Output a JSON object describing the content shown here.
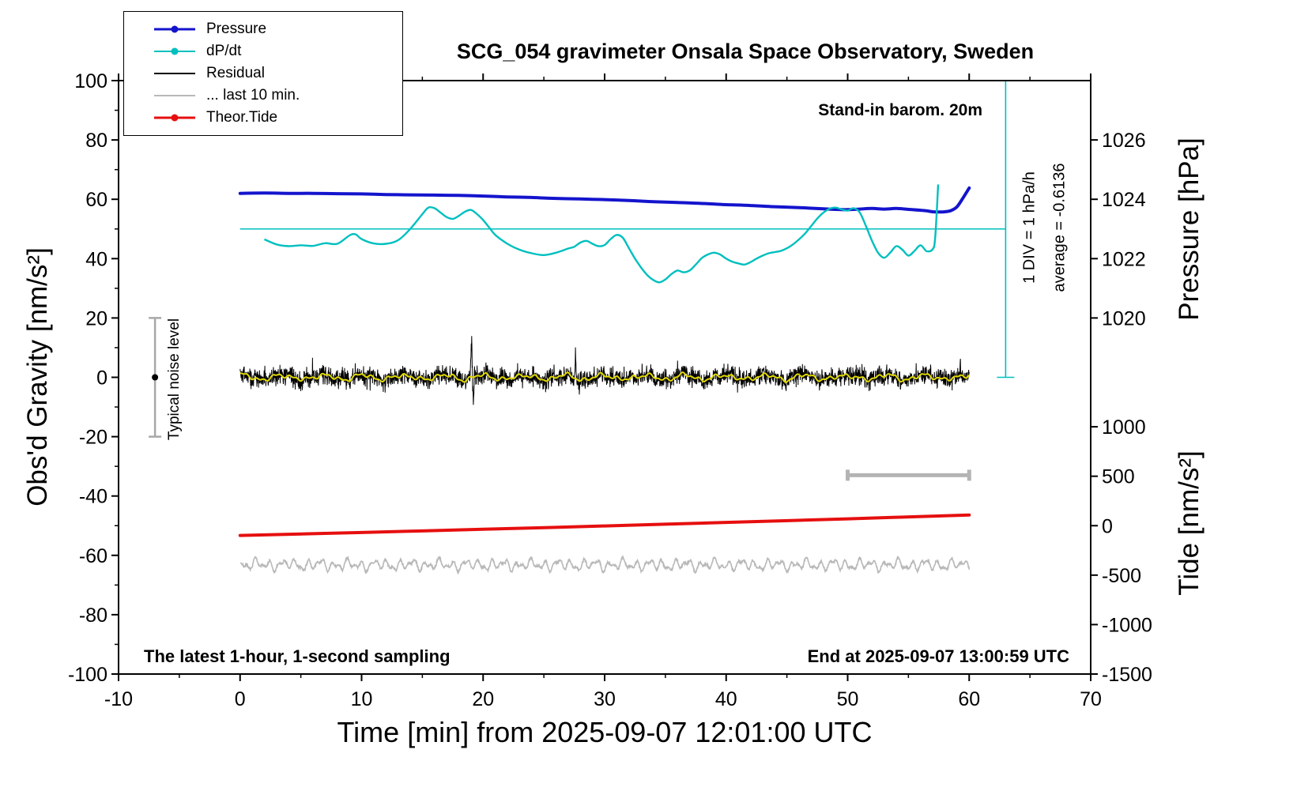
{
  "figure": {
    "title": "SCG_054 gravimeter Onsala Space Observatory, Sweden",
    "annotations": {
      "barometer": "Stand-in barom. 20m",
      "div_scale": "1 DIV = 1 hPa/h",
      "average": "average = -0.6136",
      "noise_level": "Typical noise level",
      "sampling": "The latest 1-hour, 1-second sampling",
      "end_time": "End at 2025-09-07 13:00:59 UTC"
    }
  },
  "colors": {
    "pressure": "#1414cd",
    "dpdt": "#00bfbf",
    "residual": "#000000",
    "residual_smooth": "#e0d800",
    "last10": "#b8b8b8",
    "tide": "#e60f0f",
    "noise_bar": "#a8a8a8",
    "scalebar": "#b4b4b4",
    "frame": "#000000"
  },
  "legend": {
    "items": [
      {
        "label": "Pressure",
        "color": "#1414cd",
        "dot": true,
        "width": 3
      },
      {
        "label": "dP/dt",
        "color": "#00bfbf",
        "dot": true,
        "width": 2
      },
      {
        "label": "Residual",
        "color": "#000000",
        "dot": false,
        "width": 2
      },
      {
        "label": "... last 10 min.",
        "color": "#b8b8b8",
        "dot": false,
        "width": 2
      },
      {
        "label": "Theor.Tide",
        "color": "#e60f0f",
        "dot": true,
        "width": 3
      }
    ]
  },
  "chart_data": {
    "type": "line",
    "title": "SCG_054 gravimeter Onsala Space Observatory, Sweden",
    "xlabel": "Time [min] from 2025-09-07 12:01:00 UTC",
    "ylabel": "Obs'd Gravity [nm/s²]",
    "y2label_pressure": "Pressure [hPa]",
    "y2label_tide": "Tide [nm/s²]",
    "xlim": [
      -10,
      70
    ],
    "ylim": [
      -100,
      100
    ],
    "x_ticks": [
      -10,
      0,
      10,
      20,
      30,
      40,
      50,
      60,
      70
    ],
    "x_minor_step": 5,
    "y_ticks": [
      -100,
      -80,
      -60,
      -40,
      -20,
      0,
      20,
      40,
      60,
      80,
      100
    ],
    "y_minor_step": 10,
    "pressure_ticks": [
      1020,
      1022,
      1024,
      1026
    ],
    "pressure_map": {
      "hPa0": 1018,
      "hPa_per_g": 0.1
    },
    "tide_ticks": [
      -1500,
      -1000,
      -500,
      0,
      500,
      1000
    ],
    "tide_map": {
      "g0": -50,
      "tide_per_g": 30
    },
    "dpdt_zero_line": {
      "g": 50,
      "x_range": [
        0,
        63
      ]
    },
    "div_line": {
      "x": 63,
      "g_range": [
        0,
        100
      ]
    },
    "noise_errorbar": {
      "x": -7,
      "g_range": [
        -20,
        20
      ],
      "dot_g": 0
    },
    "scalebar": {
      "x_range": [
        50,
        60
      ],
      "g": -33
    },
    "series": {
      "pressure": {
        "name": "Pressure",
        "axis_units": "gravity nm/s² (hPa = 1018 + g/10)",
        "points": [
          [
            0,
            62.0
          ],
          [
            2,
            62.1
          ],
          [
            4,
            62.0
          ],
          [
            6,
            62.0
          ],
          [
            8,
            61.9
          ],
          [
            10,
            61.8
          ],
          [
            12,
            61.6
          ],
          [
            14,
            61.5
          ],
          [
            16,
            61.4
          ],
          [
            18,
            61.3
          ],
          [
            20,
            61.1
          ],
          [
            22,
            60.8
          ],
          [
            24,
            60.6
          ],
          [
            26,
            60.3
          ],
          [
            28,
            60.1
          ],
          [
            30,
            59.9
          ],
          [
            32,
            59.6
          ],
          [
            34,
            59.2
          ],
          [
            36,
            58.9
          ],
          [
            38,
            58.6
          ],
          [
            40,
            58.2
          ],
          [
            42,
            57.9
          ],
          [
            44,
            57.5
          ],
          [
            46,
            57.2
          ],
          [
            47,
            57.0
          ],
          [
            48,
            56.8
          ],
          [
            49,
            56.6
          ],
          [
            50,
            56.5
          ],
          [
            51,
            56.7
          ],
          [
            52,
            56.9
          ],
          [
            53,
            56.7
          ],
          [
            54,
            56.9
          ],
          [
            55,
            56.6
          ],
          [
            56,
            56.3
          ],
          [
            56.5,
            56.1
          ],
          [
            57,
            55.8
          ],
          [
            57.5,
            55.7
          ],
          [
            58,
            55.8
          ],
          [
            58.5,
            56.2
          ],
          [
            59,
            57.5
          ],
          [
            59.5,
            60.5
          ],
          [
            60,
            63.8
          ]
        ]
      },
      "dpdt": {
        "name": "dP/dt",
        "zero_reference_g": 50,
        "points": [
          [
            2,
            46.5
          ],
          [
            3,
            44.8
          ],
          [
            4,
            44.2
          ],
          [
            5,
            44.5
          ],
          [
            6,
            44.3
          ],
          [
            7,
            45.2
          ],
          [
            8,
            45.0
          ],
          [
            9,
            47.8
          ],
          [
            9.5,
            48.2
          ],
          [
            10,
            46.6
          ],
          [
            11,
            45.1
          ],
          [
            12,
            45.0
          ],
          [
            13,
            46.2
          ],
          [
            14,
            50.0
          ],
          [
            15,
            55.0
          ],
          [
            15.5,
            57.2
          ],
          [
            16,
            57.0
          ],
          [
            16.5,
            55.5
          ],
          [
            17,
            54.0
          ],
          [
            17.5,
            53.4
          ],
          [
            18,
            54.4
          ],
          [
            18.5,
            55.8
          ],
          [
            19,
            56.4
          ],
          [
            19.5,
            55.0
          ],
          [
            20,
            53.0
          ],
          [
            20.5,
            50.5
          ],
          [
            21,
            48.0
          ],
          [
            22,
            45.0
          ],
          [
            23,
            43.0
          ],
          [
            24,
            41.8
          ],
          [
            25,
            41.2
          ],
          [
            26,
            42.0
          ],
          [
            27,
            43.4
          ],
          [
            27.5,
            44.0
          ],
          [
            28,
            45.4
          ],
          [
            28.5,
            46.0
          ],
          [
            29,
            45.0
          ],
          [
            29.5,
            44.2
          ],
          [
            30,
            44.6
          ],
          [
            30.5,
            46.6
          ],
          [
            31,
            48.0
          ],
          [
            31.5,
            47.0
          ],
          [
            32,
            43.5
          ],
          [
            32.5,
            40.0
          ],
          [
            33,
            37.0
          ],
          [
            33.5,
            34.5
          ],
          [
            34,
            32.8
          ],
          [
            34.5,
            32.0
          ],
          [
            35,
            33.0
          ],
          [
            35.5,
            34.8
          ],
          [
            36,
            36.0
          ],
          [
            36.5,
            35.4
          ],
          [
            37,
            36.0
          ],
          [
            37.5,
            38.0
          ],
          [
            38,
            40.2
          ],
          [
            38.5,
            41.4
          ],
          [
            39,
            42.0
          ],
          [
            39.5,
            41.4
          ],
          [
            40,
            40.0
          ],
          [
            40.5,
            39.0
          ],
          [
            41,
            38.4
          ],
          [
            41.5,
            38.0
          ],
          [
            42,
            38.8
          ],
          [
            42.5,
            40.0
          ],
          [
            43,
            41.0
          ],
          [
            43.5,
            41.8
          ],
          [
            44,
            42.2
          ],
          [
            44.5,
            42.6
          ],
          [
            45,
            43.5
          ],
          [
            45.5,
            44.8
          ],
          [
            46,
            46.5
          ],
          [
            46.5,
            48.5
          ],
          [
            47,
            51.0
          ],
          [
            47.5,
            53.5
          ],
          [
            48,
            55.5
          ],
          [
            48.5,
            56.8
          ],
          [
            49,
            57.2
          ],
          [
            49.5,
            56.6
          ],
          [
            50,
            56.2
          ],
          [
            50.5,
            57.0
          ],
          [
            51,
            55.5
          ],
          [
            51.5,
            51.0
          ],
          [
            52,
            46.0
          ],
          [
            52.5,
            42.0
          ],
          [
            53,
            40.3
          ],
          [
            53.5,
            42.0
          ],
          [
            54,
            44.2
          ],
          [
            54.5,
            43.0
          ],
          [
            55,
            41.0
          ],
          [
            55.5,
            42.6
          ],
          [
            56,
            44.5
          ],
          [
            56.5,
            42.5
          ],
          [
            57,
            43.2
          ],
          [
            57.2,
            47.0
          ],
          [
            57.45,
            65.0
          ]
        ]
      },
      "tide": {
        "name": "Theor.Tide",
        "axis_units": "gravity nm/s² (tide = 30*(g+50))",
        "points": [
          [
            0,
            -53.3
          ],
          [
            10,
            -52.3
          ],
          [
            20,
            -51.2
          ],
          [
            30,
            -50.1
          ],
          [
            40,
            -48.9
          ],
          [
            50,
            -47.7
          ],
          [
            60,
            -46.4
          ]
        ]
      },
      "residual": {
        "name": "Residual",
        "x_range": [
          0,
          60
        ],
        "mean": 0,
        "noise_std": 1.55,
        "seed": 42,
        "spikes": [
          {
            "x": 19.05,
            "amp": 12.5,
            "w": 0.1
          },
          {
            "x": 19.2,
            "amp": -11.0,
            "w": 0.08
          },
          {
            "x": 27.6,
            "amp": 8.5,
            "w": 0.08
          }
        ]
      },
      "residual_smooth": {
        "name": "Residual smoothed",
        "x_range": [
          0,
          60
        ],
        "mean": 0,
        "amplitude": 1.2
      },
      "last10": {
        "name": "... last 10 min.",
        "x_range": [
          0,
          60
        ],
        "mean": -63.2,
        "amplitude": 2.3,
        "seed": 7
      }
    }
  }
}
